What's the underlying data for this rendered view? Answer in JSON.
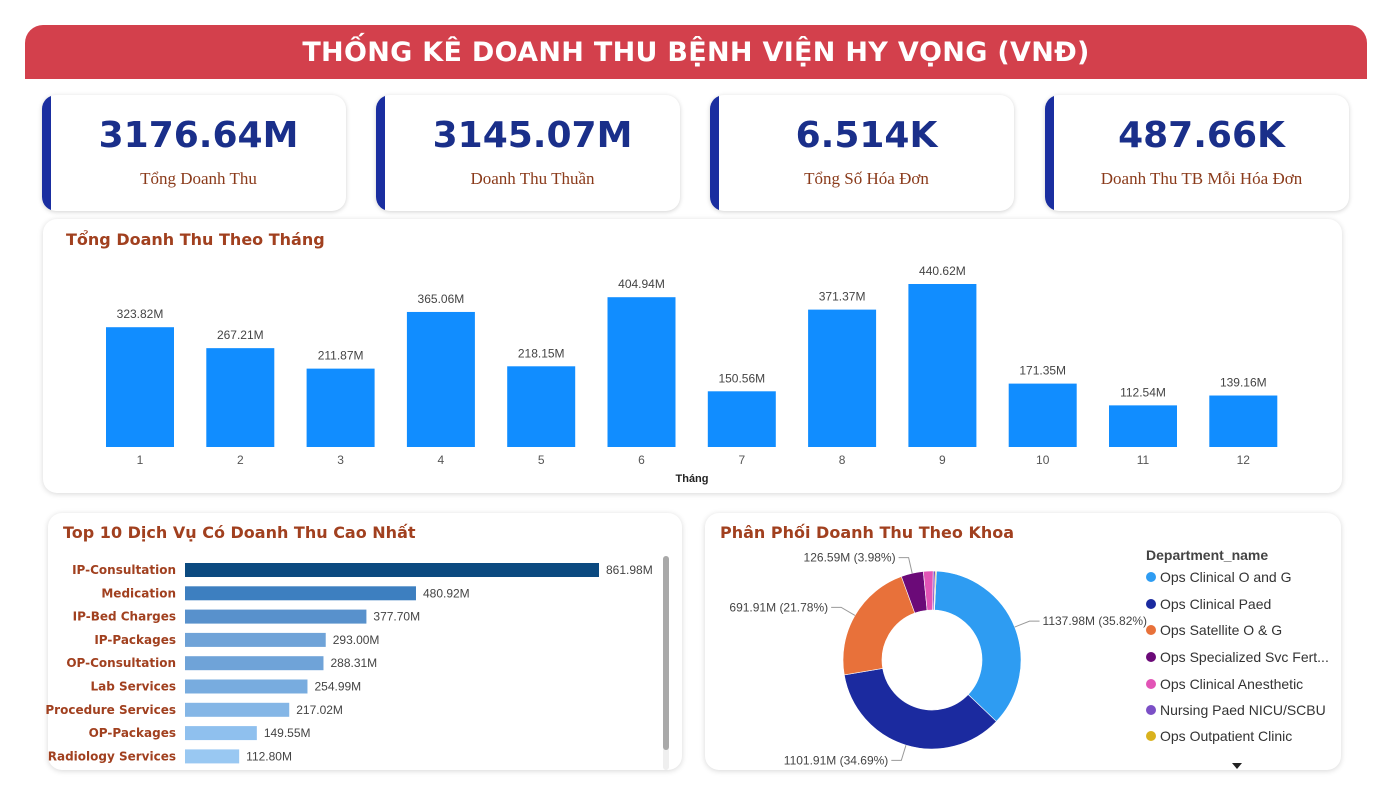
{
  "header": {
    "title": "THỐNG KÊ DOANH THU BỆNH VIỆN HY VỌNG (VNĐ)"
  },
  "kpis": [
    {
      "value": "3176.64M",
      "label": "Tổng Doanh Thu"
    },
    {
      "value": "3145.07M",
      "label": "Doanh Thu Thuần"
    },
    {
      "value": "6.514K",
      "label": "Tổng Số Hóa Đơn"
    },
    {
      "value": "487.66K",
      "label": "Doanh Thu TB Mỗi Hóa Đơn"
    }
  ],
  "colors": {
    "header": "#d3404c",
    "kpi_value": "#1a2f8a",
    "kpi_accent": "#1a2ea0",
    "title_text": "#a1401f",
    "monthly_bar": "#118dff"
  },
  "chart_data": [
    {
      "type": "bar",
      "title": "Tổng Doanh Thu Theo Tháng",
      "xlabel": "Tháng",
      "ylabel": "",
      "categories": [
        "1",
        "2",
        "3",
        "4",
        "5",
        "6",
        "7",
        "8",
        "9",
        "10",
        "11",
        "12"
      ],
      "values": [
        323.82,
        267.21,
        211.87,
        365.06,
        218.15,
        404.94,
        150.56,
        371.37,
        440.62,
        171.35,
        112.54,
        139.16
      ],
      "value_labels": [
        "323.82M",
        "267.21M",
        "211.87M",
        "365.06M",
        "218.15M",
        "404.94M",
        "150.56M",
        "371.37M",
        "440.62M",
        "171.35M",
        "112.54M",
        "139.16M"
      ],
      "unit": "M",
      "ylim": [
        0,
        440.62
      ],
      "grid": false,
      "color": "#118dff"
    },
    {
      "type": "bar",
      "orientation": "horizontal",
      "title": "Top 10 Dịch Vụ Có Doanh Thu Cao Nhất",
      "categories": [
        "IP-Consultation",
        "Medication",
        "IP-Bed Charges",
        "IP-Packages",
        "OP-Consultation",
        "Lab Services",
        "Procedure Services",
        "OP-Packages",
        "Radiology Services"
      ],
      "values": [
        861.98,
        480.92,
        377.7,
        293.0,
        288.31,
        254.99,
        217.02,
        149.55,
        112.8
      ],
      "value_labels": [
        "861.98M",
        "480.92M",
        "377.70M",
        "293.00M",
        "288.31M",
        "254.99M",
        "217.02M",
        "149.55M",
        "112.80M"
      ],
      "unit": "M",
      "ylim": [
        0,
        861.98
      ],
      "grid": false,
      "colors": [
        "#0b4a80",
        "#3d7fc0",
        "#5891cc",
        "#6fa3d8",
        "#6fa3d8",
        "#78acdf",
        "#84b6e6",
        "#8fc0ee",
        "#99c8f2"
      ]
    },
    {
      "type": "pie",
      "style": "donut",
      "title": "Phân Phối Doanh Thu Theo Khoa",
      "legend_title": "Department_name",
      "legend_position": "right",
      "series": [
        {
          "name": "Ops Clinical O and G",
          "value": 1137.98,
          "percent": 35.82,
          "label": "1137.98M (35.82%)",
          "color": "#2e9cf2"
        },
        {
          "name": "Ops Clinical Paed",
          "value": 1101.91,
          "percent": 34.69,
          "label": "1101.91M (34.69%)",
          "color": "#1b2a9f"
        },
        {
          "name": "Ops Satellite O & G",
          "value": 691.91,
          "percent": 21.78,
          "label": "691.91M (21.78%)",
          "color": "#e8713a"
        },
        {
          "name": "Ops Specialized Svc Fert...",
          "value": 126.59,
          "percent": 3.98,
          "label": "126.59M (3.98%)",
          "color": "#6b0a78"
        },
        {
          "name": "Ops Clinical Anesthetic",
          "value": 55.6,
          "percent": 1.75,
          "label": "",
          "color": "#e254b6"
        },
        {
          "name": "Nursing Paed NICU/SCBU",
          "value": 12.0,
          "percent": 0.38,
          "label": "",
          "color": "#7b4fc6"
        },
        {
          "name": "Ops Outpatient Clinic",
          "value": 6.0,
          "percent": 0.19,
          "label": "",
          "color": "#d9b21e"
        }
      ]
    }
  ]
}
